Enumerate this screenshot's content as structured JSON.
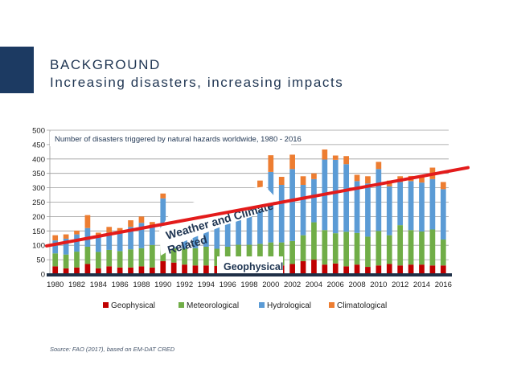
{
  "slide": {
    "heading": "BACKGROUND",
    "subheading": "Increasing disasters, increasing impacts",
    "source": "Source:  FAO (2017), based on EM-DAT CRED",
    "accent_color": "#1c3a62"
  },
  "chart_data": {
    "type": "bar",
    "stacked": true,
    "title": "Number of disasters triggered by natural hazards worldwide, 1980 - 2016",
    "xlabel": "",
    "ylabel": "",
    "ylim": [
      0,
      500
    ],
    "yticks": [
      0,
      50,
      100,
      150,
      200,
      250,
      300,
      350,
      400,
      450,
      500
    ],
    "grid": true,
    "legend_position": "bottom",
    "categories": [
      "1980",
      "1981",
      "1982",
      "1983",
      "1984",
      "1985",
      "1986",
      "1987",
      "1988",
      "1989",
      "1990",
      "1991",
      "1992",
      "1993",
      "1994",
      "1995",
      "1996",
      "1997",
      "1998",
      "1999",
      "2000",
      "2001",
      "2002",
      "2003",
      "2004",
      "2005",
      "2006",
      "2007",
      "2008",
      "2009",
      "2010",
      "2011",
      "2012",
      "2013",
      "2014",
      "2015",
      "2016"
    ],
    "xtick_labels": [
      "1980",
      "1982",
      "1984",
      "1986",
      "1988",
      "1990",
      "1992",
      "1994",
      "1996",
      "1998",
      "2000",
      "2002",
      "2004",
      "2006",
      "2008",
      "2010",
      "2012",
      "2014",
      "2016"
    ],
    "series": [
      {
        "name": "Geophysical",
        "color": "#c00000",
        "values": [
          27,
          20,
          23,
          35,
          20,
          27,
          23,
          23,
          27,
          23,
          45,
          40,
          33,
          30,
          30,
          28,
          30,
          32,
          30,
          30,
          35,
          30,
          35,
          45,
          50,
          33,
          37,
          27,
          33,
          25,
          30,
          35,
          30,
          33,
          33,
          30,
          30
        ]
      },
      {
        "name": "Meteorological",
        "color": "#70ad47",
        "values": [
          45,
          48,
          55,
          60,
          57,
          57,
          57,
          63,
          63,
          78,
          110,
          50,
          55,
          60,
          65,
          60,
          65,
          70,
          72,
          75,
          75,
          80,
          80,
          90,
          130,
          120,
          105,
          120,
          110,
          105,
          120,
          100,
          140,
          120,
          115,
          125,
          90
        ]
      },
      {
        "name": "Hydrological",
        "color": "#5b9bd5",
        "values": [
          45,
          55,
          60,
          65,
          55,
          60,
          65,
          78,
          88,
          65,
          108,
          95,
          80,
          95,
          95,
          105,
          100,
          115,
          140,
          180,
          245,
          200,
          250,
          175,
          150,
          245,
          255,
          235,
          180,
          185,
          215,
          170,
          150,
          170,
          170,
          175,
          175
        ]
      },
      {
        "name": "Climatological",
        "color": "#ed7d31",
        "values": [
          18,
          15,
          13,
          45,
          12,
          20,
          15,
          23,
          22,
          15,
          17,
          30,
          10,
          30,
          25,
          20,
          0,
          25,
          30,
          40,
          58,
          28,
          50,
          30,
          20,
          35,
          15,
          28,
          22,
          25,
          25,
          20,
          20,
          18,
          20,
          40,
          25
        ]
      }
    ],
    "trendline": {
      "color": "#e31b1b",
      "start_value": 98,
      "end_value": 370
    },
    "annotations": [
      {
        "text_lines": [
          "Weather and Climate",
          "Related"
        ],
        "label": "weather-climate-callout"
      },
      {
        "text_lines": [
          "Geophysical"
        ],
        "label": "geophysical-callout"
      }
    ]
  }
}
